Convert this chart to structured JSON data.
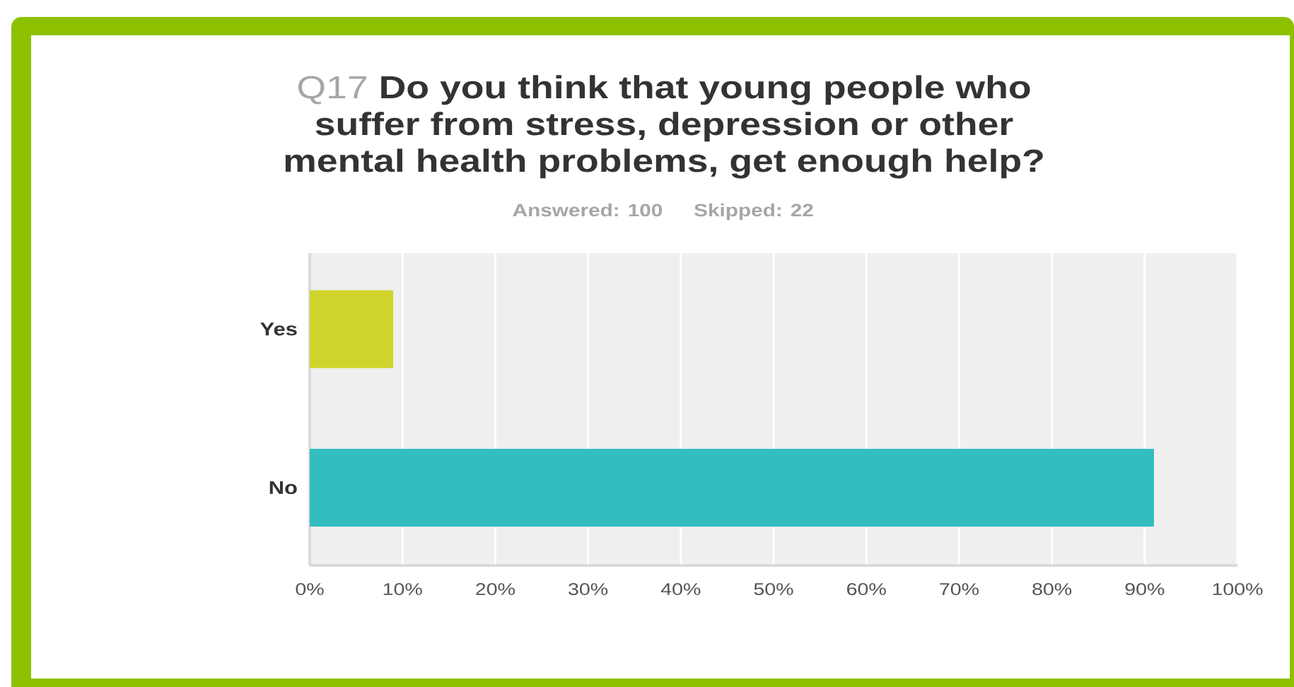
{
  "chart_data": {
    "type": "bar",
    "orientation": "horizontal",
    "title": "Q17 **Do you think that young people who suffer from stress, depression or other mental health problems, get enough help?**",
    "subtitle": "Answered: 100",
    "annotations": [
      "Skipped: 22"
    ],
    "categories": [
      "Yes",
      "No"
    ],
    "values": [
      9,
      91
    ],
    "colors": [
      "#d0d42a",
      "#33bdbf"
    ],
    "xlim": [
      0,
      100
    ],
    "xticks": [
      {
        "value": 0,
        "label": "0%"
      },
      {
        "value": 10,
        "label": "10%"
      },
      {
        "value": 20,
        "label": "20%"
      },
      {
        "value": 30,
        "label": "30%"
      },
      {
        "value": 40,
        "label": "40%"
      },
      {
        "value": 50,
        "label": "50%"
      },
      {
        "value": 60,
        "label": "60%"
      },
      {
        "value": 70,
        "label": "70%"
      },
      {
        "value": 80,
        "label": "80%"
      },
      {
        "value": 90,
        "label": "90%"
      },
      {
        "value": 100,
        "label": "100%"
      }
    ],
    "grid": "x"
  }
}
